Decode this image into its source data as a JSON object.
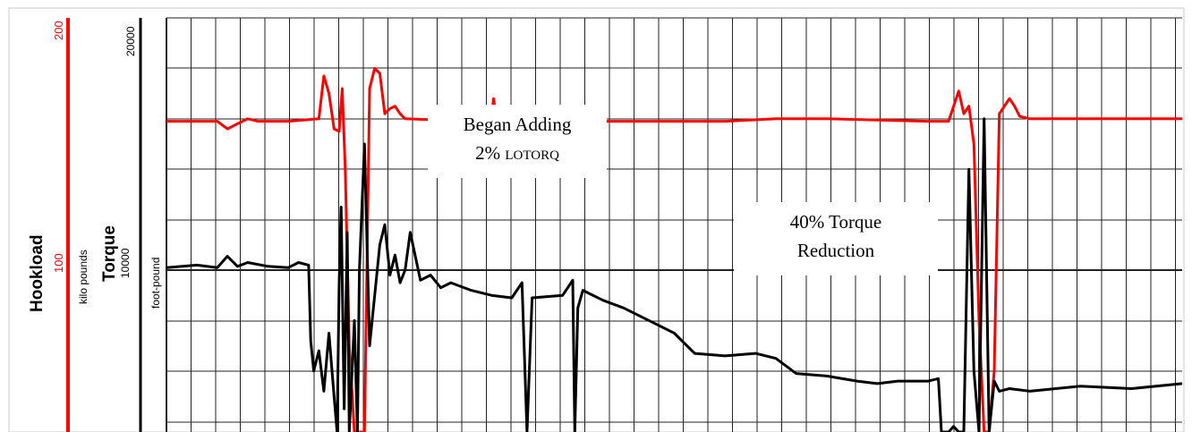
{
  "chart_data": {
    "type": "line",
    "tracks": {
      "hookload": {
        "name": "Hookload",
        "unit": "kilo pounds",
        "scale_top": "200",
        "scale_mid": "100",
        "color": "#ff0000"
      },
      "torque": {
        "name": "Torque",
        "unit": "foot-pound",
        "scale_top": "20000",
        "scale_mid": "10000",
        "color": "#000000"
      }
    },
    "annotations": {
      "lotorq_line1": "Began Adding",
      "lotorq_line2_pre": "2% ",
      "lotorq_line2_sc": "LOTORQ",
      "torque_line1": "40% Torque",
      "torque_line2": "Reduction"
    },
    "series": [
      {
        "name": "Hookload",
        "color": "#ff0000",
        "points": [
          [
            0,
            159
          ],
          [
            0.05,
            159
          ],
          [
            0.06,
            156
          ],
          [
            0.07,
            158
          ],
          [
            0.08,
            160
          ],
          [
            0.09,
            159
          ],
          [
            0.12,
            159
          ],
          [
            0.15,
            160
          ],
          [
            0.155,
            177
          ],
          [
            0.16,
            170
          ],
          [
            0.165,
            156
          ],
          [
            0.17,
            155
          ],
          [
            0.173,
            172
          ],
          [
            0.176,
            140
          ],
          [
            0.18,
            70
          ],
          [
            0.185,
            30
          ],
          [
            0.19,
            -5
          ],
          [
            0.195,
            30
          ],
          [
            0.2,
            172
          ],
          [
            0.205,
            180
          ],
          [
            0.21,
            178
          ],
          [
            0.215,
            162
          ],
          [
            0.22,
            164
          ],
          [
            0.225,
            165
          ],
          [
            0.23,
            162
          ],
          [
            0.235,
            160
          ],
          [
            0.3,
            159
          ],
          [
            0.32,
            160
          ],
          [
            0.322,
            168
          ],
          [
            0.325,
            160
          ],
          [
            0.35,
            159
          ],
          [
            0.352,
            164
          ],
          [
            0.355,
            159
          ],
          [
            0.45,
            159
          ],
          [
            0.55,
            159
          ],
          [
            0.6,
            160
          ],
          [
            0.65,
            160
          ],
          [
            0.75,
            159
          ],
          [
            0.77,
            159
          ],
          [
            0.78,
            171
          ],
          [
            0.785,
            162
          ],
          [
            0.79,
            165
          ],
          [
            0.795,
            150
          ],
          [
            0.8,
            80
          ],
          [
            0.805,
            5
          ],
          [
            0.81,
            -5
          ],
          [
            0.815,
            60
          ],
          [
            0.82,
            162
          ],
          [
            0.825,
            165
          ],
          [
            0.83,
            168
          ],
          [
            0.835,
            165
          ],
          [
            0.84,
            161
          ],
          [
            0.85,
            160
          ],
          [
            0.9,
            160
          ],
          [
            0.95,
            160
          ],
          [
            1.0,
            160
          ]
        ]
      },
      {
        "name": "Torque",
        "color": "#000000",
        "points": [
          [
            0,
            10100
          ],
          [
            0.03,
            10200
          ],
          [
            0.05,
            10100
          ],
          [
            0.06,
            10550
          ],
          [
            0.07,
            10150
          ],
          [
            0.08,
            10300
          ],
          [
            0.1,
            10150
          ],
          [
            0.12,
            10100
          ],
          [
            0.13,
            10300
          ],
          [
            0.14,
            10200
          ],
          [
            0.142,
            7200
          ],
          [
            0.145,
            6000
          ],
          [
            0.15,
            6800
          ],
          [
            0.155,
            5200
          ],
          [
            0.16,
            7500
          ],
          [
            0.165,
            5000
          ],
          [
            0.168,
            -200
          ],
          [
            0.17,
            9500
          ],
          [
            0.172,
            12500
          ],
          [
            0.175,
            4500
          ],
          [
            0.178,
            11500
          ],
          [
            0.18,
            500
          ],
          [
            0.185,
            8000
          ],
          [
            0.188,
            -400
          ],
          [
            0.19,
            10000
          ],
          [
            0.195,
            15000
          ],
          [
            0.2,
            7000
          ],
          [
            0.21,
            11000
          ],
          [
            0.215,
            11800
          ],
          [
            0.22,
            9800
          ],
          [
            0.225,
            10600
          ],
          [
            0.23,
            9500
          ],
          [
            0.235,
            10000
          ],
          [
            0.24,
            11500
          ],
          [
            0.25,
            9600
          ],
          [
            0.26,
            9800
          ],
          [
            0.27,
            9300
          ],
          [
            0.28,
            9500
          ],
          [
            0.3,
            9200
          ],
          [
            0.32,
            9000
          ],
          [
            0.34,
            8900
          ],
          [
            0.35,
            9500
          ],
          [
            0.355,
            -200
          ],
          [
            0.36,
            8900
          ],
          [
            0.39,
            9000
          ],
          [
            0.4,
            9600
          ],
          [
            0.402,
            -300
          ],
          [
            0.405,
            8500
          ],
          [
            0.41,
            9200
          ],
          [
            0.43,
            8800
          ],
          [
            0.45,
            8500
          ],
          [
            0.48,
            7900
          ],
          [
            0.5,
            7500
          ],
          [
            0.52,
            6700
          ],
          [
            0.55,
            6600
          ],
          [
            0.58,
            6700
          ],
          [
            0.6,
            6500
          ],
          [
            0.62,
            5900
          ],
          [
            0.65,
            5800
          ],
          [
            0.68,
            5600
          ],
          [
            0.7,
            5500
          ],
          [
            0.72,
            5600
          ],
          [
            0.75,
            5600
          ],
          [
            0.76,
            5700
          ],
          [
            0.763,
            3500
          ],
          [
            0.77,
            2000
          ],
          [
            0.775,
            3800
          ],
          [
            0.78,
            -300
          ],
          [
            0.785,
            3500
          ],
          [
            0.79,
            14000
          ],
          [
            0.795,
            6000
          ],
          [
            0.8,
            -300
          ],
          [
            0.805,
            16000
          ],
          [
            0.81,
            -300
          ],
          [
            0.815,
            5600
          ],
          [
            0.82,
            5200
          ],
          [
            0.83,
            5300
          ],
          [
            0.85,
            5200
          ],
          [
            0.9,
            5400
          ],
          [
            0.95,
            5300
          ],
          [
            1.0,
            5500
          ]
        ]
      }
    ]
  }
}
